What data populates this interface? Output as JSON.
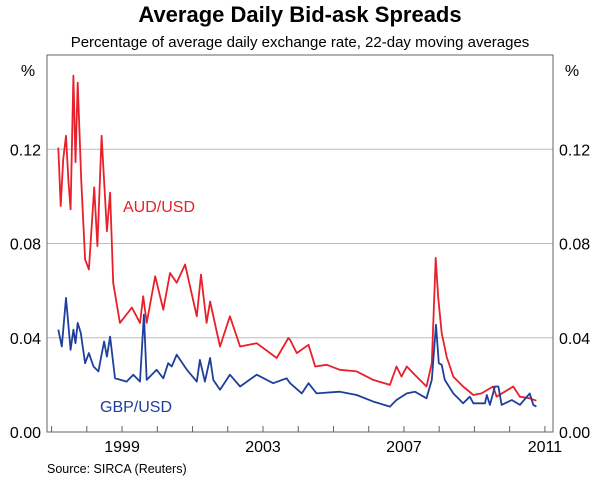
{
  "chart_data": {
    "type": "line",
    "title": "Average Daily Bid-ask Spreads",
    "subtitle": "Percentage of average daily exchange rate, 22-day moving averages",
    "ylabel_left": "%",
    "ylabel_right": "%",
    "source": "Source: SIRCA (Reuters)",
    "xlim": [
      1996.87,
      2011.23
    ],
    "ylim": [
      0,
      0.16
    ],
    "yticks": [
      0.0,
      0.04,
      0.08,
      0.12
    ],
    "ytick_labels": [
      "0.00",
      "0.04",
      "0.08",
      "0.12"
    ],
    "xticks_minor": [
      1997,
      1998,
      1999,
      2000,
      2001,
      2002,
      2003,
      2004,
      2005,
      2006,
      2007,
      2008,
      2009,
      2010,
      2011
    ],
    "xticks": [
      1999,
      2003,
      2007,
      2011
    ],
    "xtick_labels": [
      "1999",
      "2003",
      "2007",
      "2011"
    ],
    "grid": true,
    "series": [
      {
        "name": "AUD/USD",
        "color": "#e8202a",
        "x": [
          1997.19,
          1997.26,
          1997.33,
          1997.41,
          1997.48,
          1997.54,
          1997.62,
          1997.68,
          1997.74,
          1997.84,
          1997.95,
          1998.06,
          1998.21,
          1998.3,
          1998.42,
          1998.57,
          1998.66,
          1998.75,
          1998.94,
          1999.28,
          1999.51,
          1999.6,
          1999.7,
          1999.94,
          2000.17,
          2000.36,
          2000.55,
          2000.79,
          2001.12,
          2001.24,
          2001.4,
          2001.5,
          2001.78,
          2002.06,
          2002.35,
          2002.82,
          2003.39,
          2003.72,
          2003.77,
          2003.96,
          2004.29,
          2004.48,
          2004.81,
          2005.18,
          2005.66,
          2006.13,
          2006.6,
          2006.79,
          2006.93,
          2007.08,
          2007.36,
          2007.64,
          2007.79,
          2007.9,
          2007.97,
          2008.07,
          2008.21,
          2008.4,
          2008.68,
          2008.97,
          2009.2,
          2009.53,
          2009.63,
          2010.1,
          2010.29,
          2010.57,
          2010.76
        ],
        "y": [
          0.1207,
          0.0959,
          0.1157,
          0.1257,
          0.106,
          0.0945,
          0.1512,
          0.1145,
          0.1483,
          0.1072,
          0.0732,
          0.069,
          0.1038,
          0.0789,
          0.1257,
          0.0852,
          0.1016,
          0.0633,
          0.0463,
          0.0528,
          0.0463,
          0.0576,
          0.0463,
          0.0661,
          0.0519,
          0.0675,
          0.0633,
          0.0711,
          0.0491,
          0.0668,
          0.0463,
          0.0554,
          0.0363,
          0.0491,
          0.0363,
          0.0377,
          0.0314,
          0.0399,
          0.0391,
          0.0335,
          0.037,
          0.0278,
          0.0285,
          0.0264,
          0.0257,
          0.0221,
          0.02,
          0.0278,
          0.0235,
          0.0278,
          0.0235,
          0.0193,
          0.0292,
          0.0739,
          0.0576,
          0.042,
          0.032,
          0.0235,
          0.0193,
          0.0157,
          0.0164,
          0.0193,
          0.015,
          0.0193,
          0.015,
          0.0143,
          0.0133
        ]
      },
      {
        "name": "GBP/USD",
        "color": "#1f3f9c",
        "x": [
          1997.19,
          1997.29,
          1997.41,
          1997.54,
          1997.62,
          1997.68,
          1997.74,
          1997.83,
          1997.95,
          1998.06,
          1998.19,
          1998.33,
          1998.49,
          1998.57,
          1998.66,
          1998.8,
          1999.13,
          1999.32,
          1999.51,
          1999.62,
          1999.7,
          1999.98,
          2000.17,
          2000.31,
          2000.41,
          2000.55,
          2000.84,
          2001.12,
          2001.21,
          2001.35,
          2001.5,
          2001.59,
          2001.78,
          2002.06,
          2002.35,
          2002.82,
          2003.29,
          2003.67,
          2003.77,
          2004.1,
          2004.29,
          2004.52,
          2005.18,
          2005.66,
          2006.13,
          2006.6,
          2006.79,
          2007.08,
          2007.31,
          2007.64,
          2007.79,
          2007.91,
          2007.99,
          2008.07,
          2008.16,
          2008.4,
          2008.68,
          2008.87,
          2008.97,
          2009.3,
          2009.35,
          2009.44,
          2009.58,
          2009.68,
          2009.77,
          2010.06,
          2010.29,
          2010.57,
          2010.67,
          2010.76
        ],
        "y": [
          0.0434,
          0.0363,
          0.0569,
          0.0349,
          0.0434,
          0.0377,
          0.0463,
          0.042,
          0.0292,
          0.0335,
          0.0278,
          0.0257,
          0.0384,
          0.032,
          0.0405,
          0.0228,
          0.0214,
          0.0243,
          0.0214,
          0.0498,
          0.0221,
          0.0264,
          0.0228,
          0.0292,
          0.0278,
          0.0328,
          0.0264,
          0.0214,
          0.0306,
          0.0214,
          0.0314,
          0.0221,
          0.0179,
          0.0243,
          0.0193,
          0.0243,
          0.0207,
          0.0228,
          0.0207,
          0.0164,
          0.0207,
          0.0164,
          0.0171,
          0.0157,
          0.0129,
          0.0108,
          0.0136,
          0.0164,
          0.0171,
          0.0143,
          0.0221,
          0.0455,
          0.0292,
          0.0285,
          0.0221,
          0.0164,
          0.0122,
          0.015,
          0.0122,
          0.0122,
          0.0157,
          0.0115,
          0.0193,
          0.0193,
          0.0115,
          0.0136,
          0.0115,
          0.0164,
          0.0115,
          0.0108
        ]
      }
    ]
  }
}
